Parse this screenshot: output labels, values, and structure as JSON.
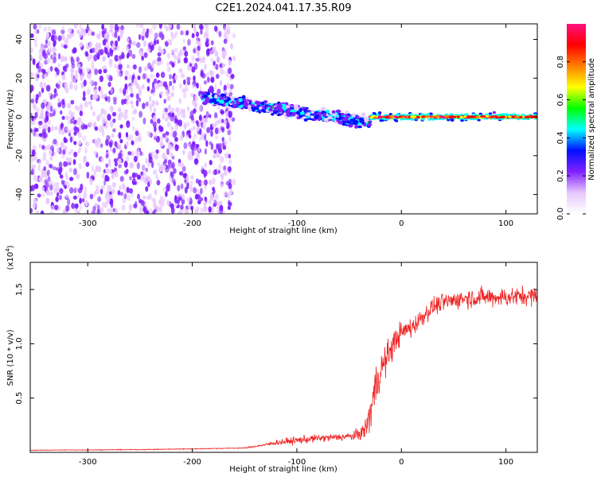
{
  "title": "C2E1.2024.041.17.35.R09",
  "chart_data": [
    {
      "type": "heatmap",
      "title": "C2E1.2024.041.17.35.R09",
      "xlabel": "Height of straight line (km)",
      "ylabel": "Frequency (Hz)",
      "xlim": [
        -355,
        130
      ],
      "ylim": [
        -50,
        48
      ],
      "x_ticks": [
        -300,
        -200,
        -100,
        0,
        100
      ],
      "x_tick_labels": [
        "-300",
        "-200",
        "-100",
        "0",
        "100"
      ],
      "y_ticks": [
        -40,
        -20,
        0,
        20,
        40
      ],
      "y_tick_labels": [
        "-40",
        "-20",
        "0",
        "20",
        "40"
      ],
      "colorbar": {
        "label": "Normalized spectral amplitude",
        "range": [
          0,
          1
        ],
        "ticks": [
          0.0,
          0.2,
          0.4,
          0.6,
          0.8
        ],
        "tick_labels": [
          "0.0",
          "0.2",
          "0.4",
          "0.6",
          "0.8"
        ],
        "colors": [
          "#ffffff",
          "#e8c8ff",
          "#8020ff",
          "#0010ff",
          "#00ffff",
          "#00ff00",
          "#ffff00",
          "#ff8000",
          "#ff0000",
          "#ff1080"
        ]
      },
      "regions": [
        {
          "name": "broadband noise",
          "x_range": [
            -355,
            -160
          ],
          "freq_range": [
            -50,
            48
          ],
          "amplitude": 0.15
        },
        {
          "name": "descending signal",
          "x_range": [
            -190,
            -30
          ],
          "freq_start": 10,
          "freq_end": -3,
          "amplitude": 0.4
        },
        {
          "name": "stable carrier",
          "x_range": [
            -30,
            130
          ],
          "freq": 0,
          "amplitude": 0.95
        }
      ]
    },
    {
      "type": "line",
      "xlabel": "Height of straight line (km)",
      "ylabel": "SNR (10 * v/v)",
      "y_multiplier": "(x10",
      "y_multiplier_exp": "4",
      "y_multiplier_close": ")",
      "xlim": [
        -355,
        130
      ],
      "ylim": [
        0,
        17500
      ],
      "x_ticks": [
        -300,
        -200,
        -100,
        0,
        100
      ],
      "x_tick_labels": [
        "-300",
        "-200",
        "-100",
        "0",
        "100"
      ],
      "y_ticks": [
        5000,
        10000,
        15000
      ],
      "y_tick_labels": [
        "0.5",
        "1.0",
        "1.5"
      ],
      "color": "#ee2222",
      "series": [
        {
          "name": "SNR",
          "x": [
            -355,
            -250,
            -150,
            -130,
            -120,
            -100,
            -80,
            -60,
            -45,
            -35,
            -30,
            -25,
            -20,
            -15,
            -10,
            -5,
            0,
            5,
            10,
            20,
            30,
            40,
            50,
            60,
            80,
            100,
            120,
            130
          ],
          "y": [
            200,
            250,
            400,
            700,
            900,
            1100,
            1300,
            1400,
            1500,
            2000,
            3500,
            6000,
            7500,
            8500,
            9500,
            10500,
            11000,
            11300,
            11500,
            12500,
            13400,
            13800,
            14000,
            14200,
            14300,
            14300,
            14400,
            14400
          ],
          "noise": [
            50,
            60,
            80,
            200,
            450,
            600,
            600,
            600,
            700,
            1500,
            3000,
            3500,
            3000,
            2500,
            2200,
            2000,
            1800,
            1700,
            1600,
            1500,
            1400,
            1400,
            1400,
            1500,
            1500,
            1500,
            1500,
            1500
          ]
        }
      ]
    }
  ]
}
